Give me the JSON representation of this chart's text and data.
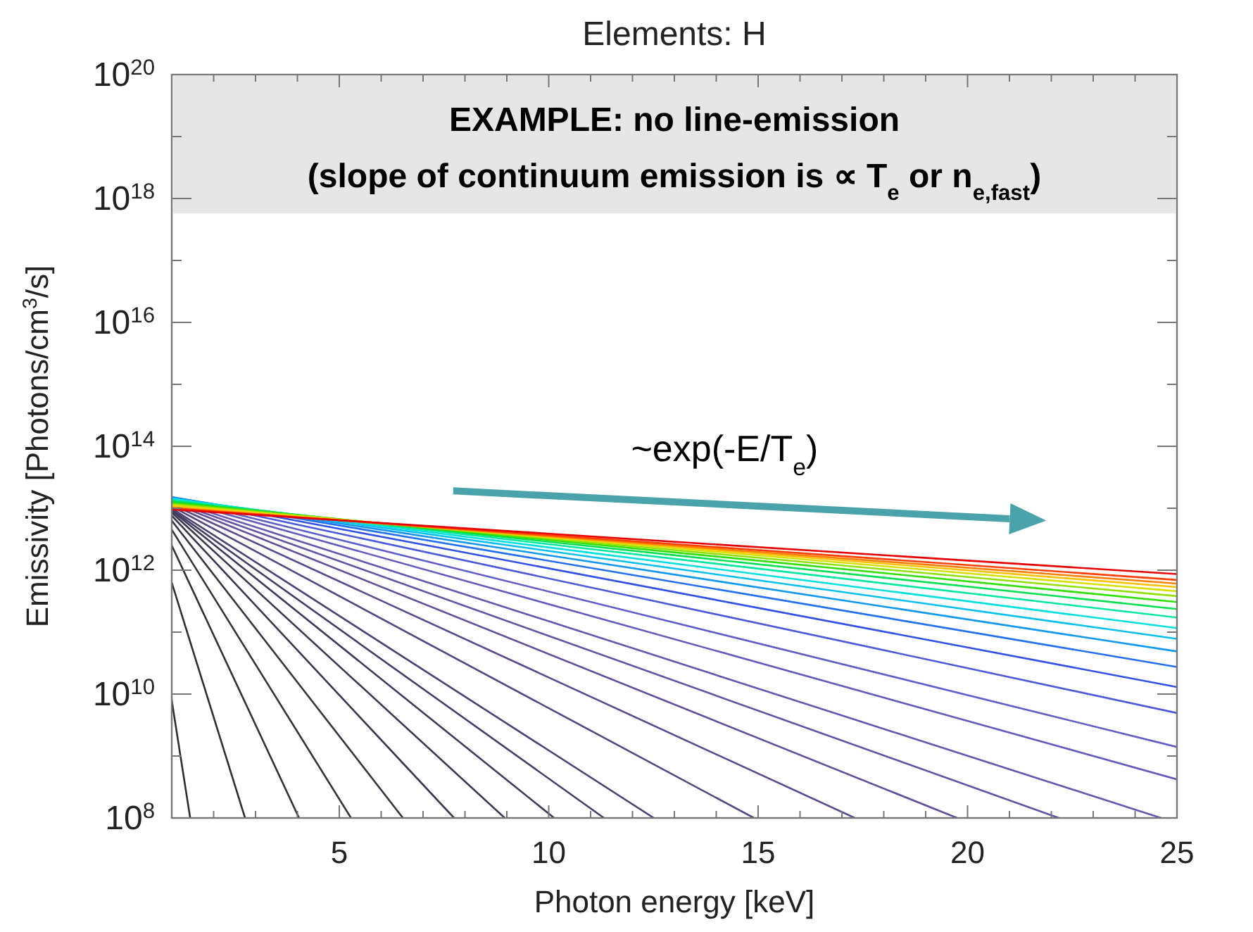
{
  "chart_data": {
    "type": "line",
    "title": "Elements: H",
    "xlabel": "Photon energy [keV]",
    "ylabel": "Emissivity [Photons/cm$^{3}$/s]",
    "log": "y",
    "xlim": [
      1,
      25
    ],
    "ylim": [
      100000000.0,
      1e+20
    ],
    "xticks": [
      {
        "value": 1,
        "label": null
      },
      {
        "value": 2,
        "label": null
      },
      {
        "value": 3,
        "label": null
      },
      {
        "value": 4,
        "label": null
      },
      5,
      {
        "value": 6,
        "label": null
      },
      {
        "value": 7,
        "label": null
      },
      {
        "value": 8,
        "label": null
      },
      {
        "value": 9,
        "label": null
      },
      10,
      {
        "value": 11,
        "label": null
      },
      {
        "value": 12,
        "label": null
      },
      {
        "value": 13,
        "label": null
      },
      {
        "value": 14,
        "label": null
      },
      15,
      {
        "value": 16,
        "label": null
      },
      {
        "value": 17,
        "label": null
      },
      {
        "value": 18,
        "label": null
      },
      {
        "value": 19,
        "label": null
      },
      20,
      {
        "value": 21,
        "label": null
      },
      {
        "value": 22,
        "label": null
      },
      {
        "value": 23,
        "label": null
      },
      {
        "value": 24,
        "label": null
      },
      25
    ],
    "yticks": [
      {
        "value": 100000000.0,
        "label": "10$^{8}$"
      },
      {
        "value": 1000000000.0,
        "label": null
      },
      {
        "value": 10000000000.0,
        "label": "10$^{10}$"
      },
      {
        "value": 100000000000.0,
        "label": null
      },
      {
        "value": 1000000000000.0,
        "label": "10$^{12}$"
      },
      {
        "value": 10000000000000.0,
        "label": null
      },
      {
        "value": 100000000000000.0,
        "label": "10$^{14}$"
      },
      {
        "value": 1000000000000000.0,
        "label": null
      },
      {
        "value": 1e+16,
        "label": "10$^{16}$"
      },
      {
        "value": 1e+17,
        "label": null
      },
      {
        "value": 1e+18,
        "label": "10$^{18}$"
      },
      {
        "value": 1e+19,
        "label": null
      },
      {
        "value": 1e+20,
        "label": "10$^{20}$"
      }
    ],
    "annotations": [
      "EXAMPLE: no line-emission",
      "(slope of continuum emission is ∝ T$_{e}$ or n$_{e,fast}$)",
      "~exp(-E/T$_{e}$)"
    ],
    "series": [
      {
        "color": "#2e2e2e",
        "x": [
          1,
          1.44
        ],
        "values": [
          7900000000.0,
          100000000.0
        ]
      },
      {
        "color": "#303030",
        "x": [
          1,
          2.75
        ],
        "values": [
          630000000000.0,
          100000000.0
        ]
      },
      {
        "color": "#323034",
        "x": [
          1,
          4.04
        ],
        "values": [
          2500000000000.0,
          100000000.0
        ]
      },
      {
        "color": "#34323a",
        "x": [
          1,
          5.28
        ],
        "values": [
          4500000000000.0,
          100000000.0
        ]
      },
      {
        "color": "#363440",
        "x": [
          1,
          6.52
        ],
        "values": [
          6300000000000.0,
          100000000.0
        ]
      },
      {
        "color": "#383648",
        "x": [
          1,
          7.74
        ],
        "values": [
          7600000000000.0,
          100000000.0
        ]
      },
      {
        "color": "#3c3850",
        "x": [
          1,
          8.95
        ],
        "values": [
          8500000000000.0,
          100000000.0
        ]
      },
      {
        "color": "#403a5a",
        "x": [
          1,
          10.13
        ],
        "values": [
          9100000000000.0,
          100000000.0
        ]
      },
      {
        "color": "#463e66",
        "x": [
          1,
          11.32
        ],
        "values": [
          9500000000000.0,
          100000000.0
        ]
      },
      {
        "color": "#4c4272",
        "x": [
          1,
          12.51
        ],
        "values": [
          10000000000000.0,
          100000000.0
        ]
      },
      {
        "color": "#54467e",
        "x": [
          1,
          14.9
        ],
        "values": [
          10700000000000.0,
          100000000.0
        ]
      },
      {
        "color": "#5a4a8c",
        "x": [
          1,
          17.31
        ],
        "values": [
          11500000000000.0,
          100000000.0
        ]
      },
      {
        "color": "#604e98",
        "x": [
          1,
          19.75
        ],
        "values": [
          12300000000000.0,
          100000000.0
        ]
      },
      {
        "color": "#6452a4",
        "x": [
          1,
          22.18
        ],
        "values": [
          12900000000000.0,
          100000000.0
        ]
      },
      {
        "color": "#6656b0",
        "x": [
          1,
          24.62
        ],
        "values": [
          13500000000000.0,
          100000000.0
        ]
      },
      {
        "color": "#645abc",
        "x": [
          1,
          25
        ],
        "values": [
          14100000000000.0,
          420000000.0
        ]
      },
      {
        "color": "#5e5ec8",
        "x": [
          1,
          25
        ],
        "values": [
          14500000000000.0,
          1400000000.0
        ]
      },
      {
        "color": "#4a5ad8",
        "x": [
          1,
          25
        ],
        "values": [
          14800000000000.0,
          4950000000.0
        ]
      },
      {
        "color": "#3050e8",
        "x": [
          1,
          25
        ],
        "values": [
          15100000000000.0,
          13000000000.0
        ]
      },
      {
        "color": "#2070f0",
        "x": [
          1,
          25
        ],
        "values": [
          15100000000000.0,
          27400000000.0
        ]
      },
      {
        "color": "#1098f0",
        "x": [
          1,
          25
        ],
        "values": [
          14800000000000.0,
          48800000000.0
        ]
      },
      {
        "color": "#00c0f0",
        "x": [
          1,
          25
        ],
        "values": [
          14500000000000.0,
          78000000000.0
        ]
      },
      {
        "color": "#00e0e0",
        "x": [
          1,
          25
        ],
        "values": [
          14100000000000.0,
          116000000000.0
        ]
      },
      {
        "color": "#00e8a0",
        "x": [
          1,
          25
        ],
        "values": [
          13500000000000.0,
          172000000000.0
        ]
      },
      {
        "color": "#00e050",
        "x": [
          1,
          25
        ],
        "values": [
          12900000000000.0,
          236000000000.0
        ]
      },
      {
        "color": "#30e000",
        "x": [
          1,
          25
        ],
        "values": [
          12300000000000.0,
          306000000000.0
        ]
      },
      {
        "color": "#90e000",
        "x": [
          1,
          25
        ],
        "values": [
          11700000000000.0,
          381000000000.0
        ]
      },
      {
        "color": "#d8e000",
        "x": [
          1,
          25
        ],
        "values": [
          11200000000000.0,
          457000000000.0
        ]
      },
      {
        "color": "#ffc000",
        "x": [
          1,
          25
        ],
        "values": [
          10700000000000.0,
          533000000000.0
        ]
      },
      {
        "color": "#ff8000",
        "x": [
          1,
          25
        ],
        "values": [
          10200000000000.0,
          608000000000.0
        ]
      },
      {
        "color": "#ff4000",
        "x": [
          1,
          25
        ],
        "values": [
          10000000000000.0,
          695000000000.0
        ]
      },
      {
        "color": "#e80000",
        "x": [
          1,
          25
        ],
        "values": [
          9550000000000.0,
          867000000000.0
        ]
      }
    ]
  }
}
